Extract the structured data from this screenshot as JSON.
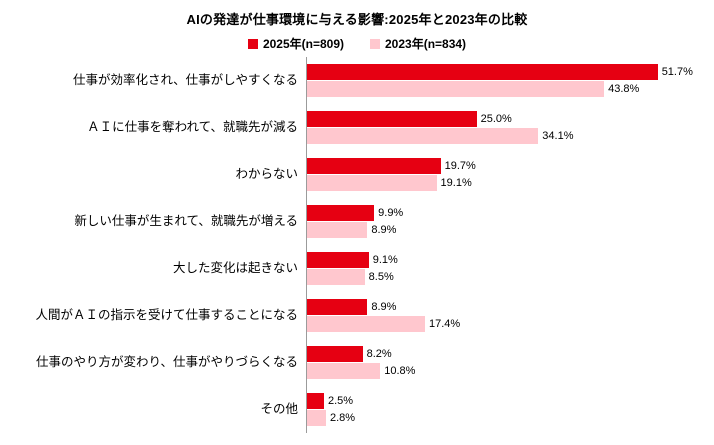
{
  "title": "AIの発達が仕事環境に与える影響:2025年と2023年の比較",
  "chart_data": {
    "type": "bar",
    "orientation": "horizontal",
    "title": "AIの発達が仕事環境に与える影響:2025年と2023年の比較",
    "xlim": [
      0,
      60
    ],
    "grid": false,
    "legend_position": "top",
    "value_suffix": "%",
    "categories": [
      "仕事が効率化され、仕事がしやすくなる",
      "ＡＩに仕事を奪われて、就職先が減る",
      "わからない",
      "新しい仕事が生まれて、就職先が増える",
      "大した変化は起きない",
      "人間がＡＩの指示を受けて仕事することになる",
      "仕事のやり方が変わり、仕事がやりづらくなる",
      "その他"
    ],
    "series": [
      {
        "key": "2025",
        "name": "2025年(n=809)",
        "color": "#e60012",
        "values": [
          51.7,
          25.0,
          19.7,
          9.9,
          9.1,
          8.9,
          8.2,
          2.5
        ]
      },
      {
        "key": "2023",
        "name": "2023年(n=834)",
        "color": "#ffc7ce",
        "values": [
          43.8,
          34.1,
          19.1,
          8.9,
          8.5,
          17.4,
          10.8,
          2.8
        ]
      }
    ]
  }
}
